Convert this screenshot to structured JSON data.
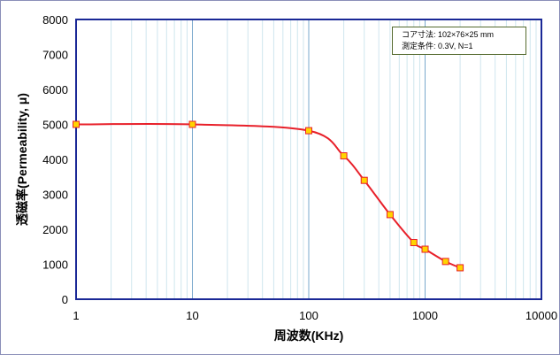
{
  "chart_data": {
    "type": "line",
    "x_scale": "log",
    "xlabel": "周波数(KHz)",
    "ylabel": "透磁率(Permeability, μ)",
    "xlim": [
      1,
      10000
    ],
    "ylim": [
      0,
      8000
    ],
    "x_ticks": [
      "1",
      "10",
      "100",
      "1000",
      "10000"
    ],
    "y_ticks": [
      "0",
      "1000",
      "2000",
      "3000",
      "4000",
      "5000",
      "6000",
      "7000",
      "8000"
    ],
    "grid": true,
    "annotation_lines": [
      "コア寸法: 102×76×25 mm",
      "測定条件: 0.3V, N=1"
    ],
    "series": [
      {
        "color": "#e8202a",
        "marker_color": "#ffd400",
        "x": [
          1,
          10,
          100,
          200,
          300,
          500,
          800,
          1000,
          1500,
          2000
        ],
        "y": [
          5000,
          5000,
          4820,
          4100,
          3400,
          2420,
          1620,
          1430,
          1080,
          900
        ]
      }
    ]
  },
  "colors": {
    "frame": "#1a2896",
    "grid_major": "#7aa8cc",
    "grid_minor": "#cfe6ee"
  }
}
